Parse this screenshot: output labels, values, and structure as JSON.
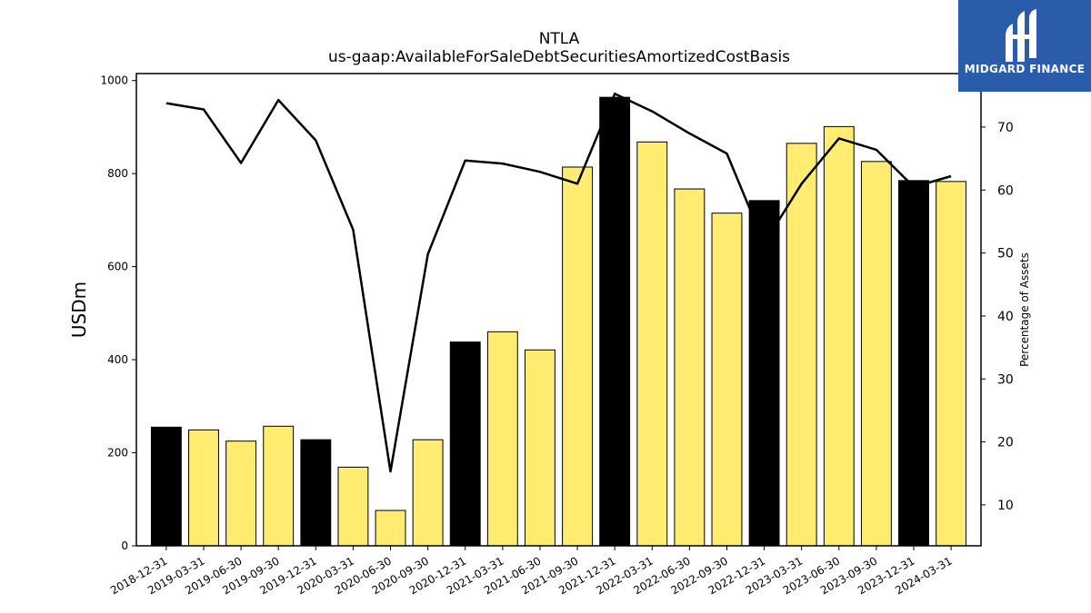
{
  "brand": {
    "name": "MIDGARD FINANCE",
    "bg_color": "#2a5caa",
    "text_color": "#ffffff"
  },
  "chart_data": {
    "type": "bar",
    "title": "NTLA",
    "subtitle": "us-gaap:AvailableForSaleDebtSecuritiesAmortizedCostBasis",
    "ylabel": "USDm",
    "y2label": "Percentage of Assets",
    "ylim": [
      0,
      1015
    ],
    "y2lim": [
      3.5,
      78.5
    ],
    "yticks": [
      0,
      200,
      400,
      600,
      800,
      1000
    ],
    "y2ticks": [
      10,
      20,
      30,
      40,
      50,
      60,
      70
    ],
    "grid": false,
    "colors": {
      "year_end": "#000000",
      "quarter": "#ffec70",
      "line": "#000000"
    },
    "categories": [
      "2018-12-31",
      "2019-03-31",
      "2019-06-30",
      "2019-09-30",
      "2019-12-31",
      "2020-03-31",
      "2020-06-30",
      "2020-09-30",
      "2020-12-31",
      "2021-03-31",
      "2021-06-30",
      "2021-09-30",
      "2021-12-31",
      "2022-03-31",
      "2022-06-30",
      "2022-09-30",
      "2022-12-31",
      "2023-03-31",
      "2023-06-30",
      "2023-09-30",
      "2023-12-31",
      "2024-03-31"
    ],
    "series": [
      {
        "kind": "bar",
        "axis": "left",
        "values": [
          255,
          249,
          225,
          257,
          228,
          169,
          76,
          228,
          438,
          460,
          421,
          814,
          964,
          868,
          767,
          715,
          742,
          865,
          901,
          826,
          785,
          783
        ],
        "highlight_year_end": [
          true,
          false,
          false,
          false,
          true,
          false,
          false,
          false,
          true,
          false,
          false,
          false,
          true,
          false,
          false,
          false,
          true,
          false,
          false,
          false,
          true,
          false
        ]
      },
      {
        "kind": "line",
        "axis": "right",
        "values": [
          73.8,
          72.8,
          64.3,
          74.3,
          67.9,
          53.7,
          15.3,
          49.8,
          64.7,
          64.2,
          62.9,
          61.0,
          75.3,
          72.5,
          69.0,
          65.8,
          51.5,
          61.0,
          68.2,
          66.4,
          60.5,
          62.2
        ]
      }
    ]
  }
}
